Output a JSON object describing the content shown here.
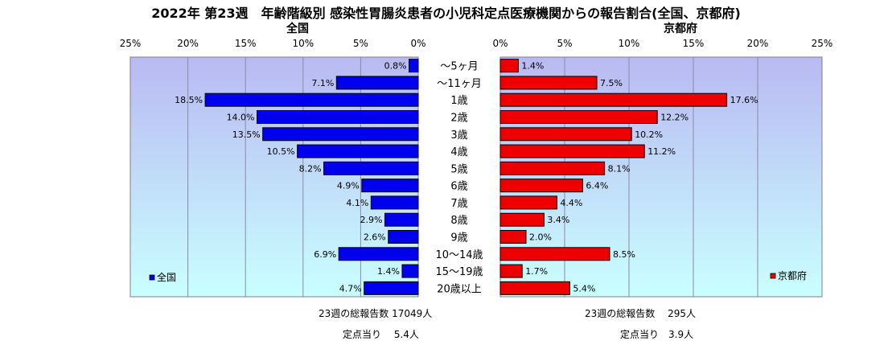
{
  "title": "2022年 第23週　年齢階級別 感染性胃腸炎患者の小児科定点医療機関からの報告割合(全国、京都府)",
  "chart_data": [
    {
      "type": "bar",
      "orientation": "horizontal",
      "title": "全国",
      "categories": [
        "～5ヶ月",
        "～11ヶ月",
        "1歳",
        "2歳",
        "3歳",
        "4歳",
        "5歳",
        "6歳",
        "7歳",
        "8歳",
        "9歳",
        "10～14歳",
        "15～19歳",
        "20歳以上"
      ],
      "series": [
        {
          "name": "全国",
          "values": [
            0.8,
            7.1,
            18.5,
            14.0,
            13.5,
            10.5,
            8.2,
            4.9,
            4.1,
            2.9,
            2.6,
            6.9,
            1.4,
            4.7
          ],
          "data_labels": [
            "0.8%",
            "7.1%",
            "18.5%",
            "14.0%",
            "13.5%",
            "10.5%",
            "8.2%",
            "4.9%",
            "4.1%",
            "2.9%",
            "2.6%",
            "6.9%",
            "1.4%",
            "4.7%"
          ],
          "color": "#0000ee"
        }
      ],
      "xlim": [
        0,
        25
      ],
      "x_reversed": true,
      "ticks": [
        "0%",
        "5%",
        "10%",
        "15%",
        "20%",
        "25%"
      ],
      "legend": "bottom-left",
      "grid": true
    },
    {
      "type": "bar",
      "orientation": "horizontal",
      "title": "京都府",
      "categories": [
        "～5ヶ月",
        "～11ヶ月",
        "1歳",
        "2歳",
        "3歳",
        "4歳",
        "5歳",
        "6歳",
        "7歳",
        "8歳",
        "9歳",
        "10～14歳",
        "15～19歳",
        "20歳以上"
      ],
      "series": [
        {
          "name": "京都府",
          "values": [
            1.4,
            7.5,
            17.6,
            12.2,
            10.2,
            11.2,
            8.1,
            6.4,
            4.4,
            3.4,
            2.0,
            8.5,
            1.7,
            5.4
          ],
          "data_labels": [
            "1.4%",
            "7.5%",
            "17.6%",
            "12.2%",
            "10.2%",
            "11.2%",
            "8.1%",
            "6.4%",
            "4.4%",
            "3.4%",
            "2.0%",
            "8.5%",
            "1.7%",
            "5.4%"
          ],
          "color": "#ee0000"
        }
      ],
      "xlim": [
        0,
        25
      ],
      "x_reversed": false,
      "ticks": [
        "0%",
        "5%",
        "10%",
        "15%",
        "20%",
        "25%"
      ],
      "legend": "bottom-right",
      "grid": true
    }
  ],
  "summary": {
    "national_total": "23週の総報告数 17049人",
    "national_per_site": "定点当り　 5.4人",
    "kyoto_total": "23週の総報告数　 295人",
    "kyoto_per_site": "定点当り　3.9人"
  },
  "colors": {
    "plot_gradient_top": "#b9b9f2",
    "plot_gradient_bottom": "#c9ffff",
    "national_bar": "#0000ee",
    "kyoto_bar": "#ee0000"
  }
}
